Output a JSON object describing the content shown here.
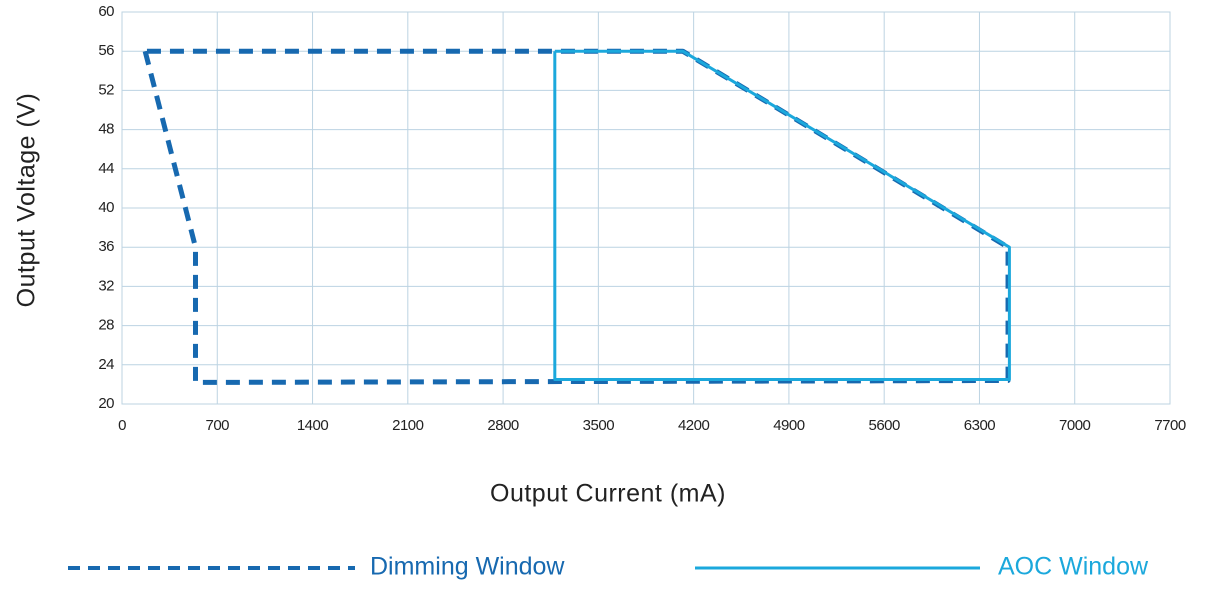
{
  "chart_data": {
    "type": "line",
    "x_label": "Output Current (mA)",
    "y_label": "Output  Voltage (V)",
    "xlim": [
      0,
      7700
    ],
    "xticks": [
      0,
      700,
      1400,
      2100,
      2800,
      3500,
      4200,
      4900,
      5600,
      6300,
      7000,
      7700
    ],
    "ylim": [
      20,
      60
    ],
    "yticks": [
      20,
      24,
      28,
      32,
      36,
      40,
      44,
      48,
      52,
      56,
      60
    ],
    "grid": true,
    "legend": "bottom",
    "series": [
      {
        "name": "Dimming Window",
        "color": "#1769b0",
        "style": "dashed",
        "x": [
          170,
          540,
          540,
          6510,
          6510,
          4120,
          170
        ],
        "values": [
          56,
          36,
          22.2,
          22.4,
          36,
          56,
          56
        ]
      },
      {
        "name": "AOC Window",
        "color": "#1ba8dc",
        "style": "solid",
        "x": [
          3180,
          4120,
          6520,
          6520,
          3180,
          3180
        ],
        "values": [
          56,
          56,
          36,
          22.5,
          22.5,
          56
        ]
      }
    ]
  }
}
